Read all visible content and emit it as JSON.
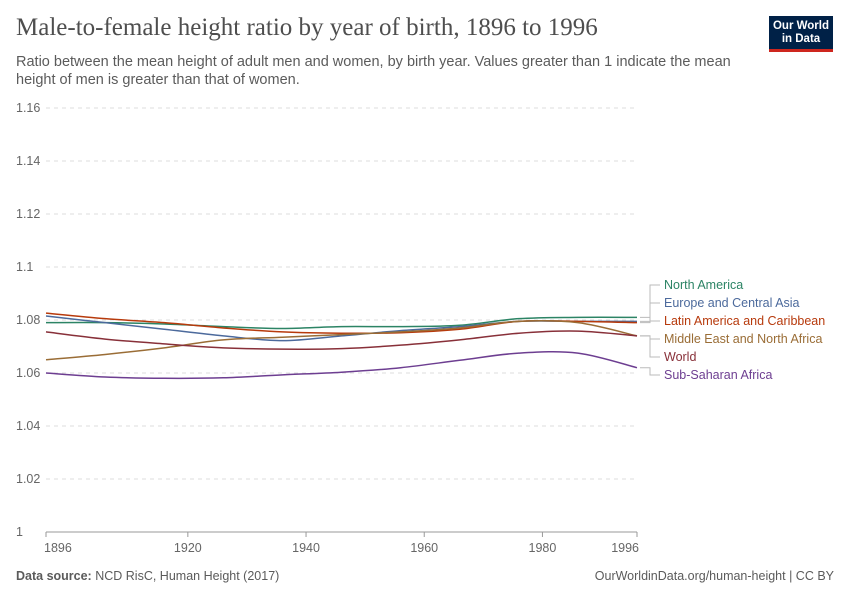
{
  "header": {
    "title": "Male-to-female height ratio by year of birth, 1896 to 1996",
    "subtitle": "Ratio between the mean height of adult men and women, by birth year. Values greater than 1 indicate the mean height of men is greater than that of women.",
    "logo": "Our World in Data"
  },
  "footer": {
    "source_label": "Data source:",
    "source": "NCD RisC, Human Height (2017)",
    "url": "OurWorldinData.org/human-height | CC BY"
  },
  "chart_data": {
    "type": "line",
    "xlim": [
      1896,
      1996
    ],
    "ylim": [
      1,
      1.16
    ],
    "x_ticks": [
      "1896",
      "1920",
      "1940",
      "1960",
      "1980",
      "1996"
    ],
    "y_ticks": [
      "1",
      "1.02",
      "1.04",
      "1.06",
      "1.08",
      "1.1",
      "1.12",
      "1.14",
      "1.16"
    ],
    "grid": "horizontal dashed",
    "legend": "right",
    "x": [
      1896,
      1906,
      1916,
      1926,
      1936,
      1946,
      1956,
      1966,
      1976,
      1986,
      1996
    ],
    "series": [
      {
        "name": "North America",
        "color": "#2c8465",
        "values": [
          1.079,
          1.079,
          1.0785,
          1.0775,
          1.0768,
          1.0775,
          1.0775,
          1.078,
          1.0805,
          1.081,
          1.081
        ]
      },
      {
        "name": "Europe and Central Asia",
        "color": "#4c6a9c",
        "values": [
          1.0815,
          1.079,
          1.0765,
          1.074,
          1.0722,
          1.074,
          1.076,
          1.0775,
          1.0795,
          1.0795,
          1.0795
        ]
      },
      {
        "name": "Latin America and Caribbean",
        "color": "#b73a0c",
        "values": [
          1.0826,
          1.0805,
          1.079,
          1.077,
          1.0755,
          1.075,
          1.0752,
          1.0765,
          1.0795,
          1.0795,
          1.079
        ]
      },
      {
        "name": "Middle East and North Africa",
        "color": "#9a6d36",
        "values": [
          1.065,
          1.067,
          1.0695,
          1.0725,
          1.0735,
          1.0745,
          1.0755,
          1.077,
          1.0795,
          1.079,
          1.074
        ]
      },
      {
        "name": "World",
        "color": "#883039",
        "values": [
          1.0755,
          1.0728,
          1.071,
          1.0695,
          1.069,
          1.0692,
          1.0705,
          1.0725,
          1.075,
          1.0758,
          1.074
        ]
      },
      {
        "name": "Sub-Saharan Africa",
        "color": "#6d3e91",
        "values": [
          1.06,
          1.0585,
          1.058,
          1.0582,
          1.0593,
          1.0603,
          1.062,
          1.0648,
          1.0675,
          1.0675,
          1.062
        ]
      }
    ]
  }
}
